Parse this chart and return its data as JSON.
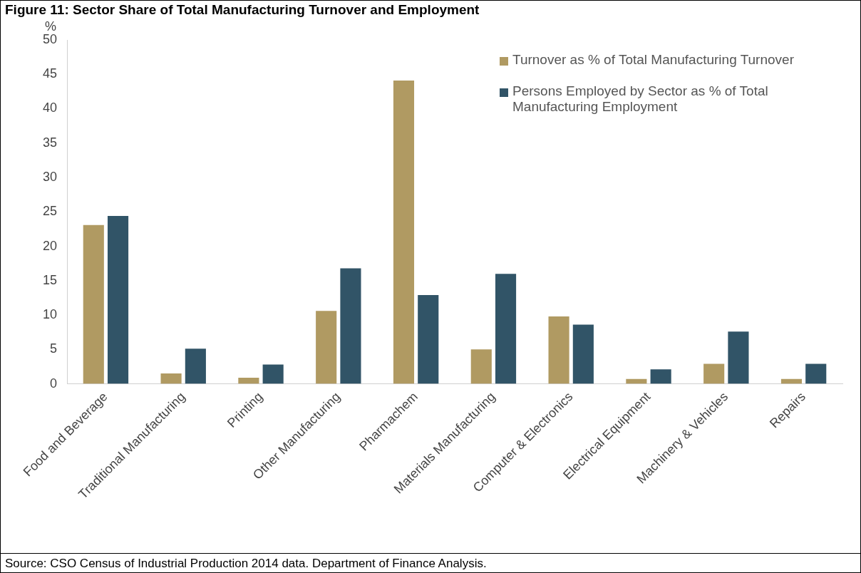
{
  "chart_data": {
    "type": "bar",
    "title": "Figure 11: Sector Share of Total Manufacturing Turnover and Employment",
    "ylabel": "%",
    "categories": [
      "Food and Beverage",
      "Traditional Manufacturing",
      "Printing",
      "Other Manufacturing",
      "Pharmachem",
      "Materials Manufacturing",
      "Computer & Electronics",
      "Electrical Equipment",
      "Machinery & Vehicles",
      "Repairs"
    ],
    "series": [
      {
        "name": "Turnover as % of Total Manufacturing Turnover",
        "color": "#b09a62",
        "values": [
          23.1,
          1.5,
          0.9,
          10.6,
          44.1,
          5.0,
          9.8,
          0.7,
          2.9,
          0.7
        ]
      },
      {
        "name": "Persons Employed by Sector as % of Total Manufacturing  Employment",
        "color": "#315467",
        "values": [
          24.4,
          5.1,
          2.8,
          16.8,
          12.9,
          16.0,
          8.6,
          2.1,
          7.6,
          2.9
        ]
      }
    ],
    "ylim": [
      0,
      50
    ],
    "yticks": [
      0,
      5,
      10,
      15,
      20,
      25,
      30,
      35,
      40,
      45,
      50
    ],
    "grid": false,
    "legend": "top right",
    "annotations": [
      "Source: CSO Census of Industrial Production 2014 data. Department of Finance Analysis."
    ]
  }
}
